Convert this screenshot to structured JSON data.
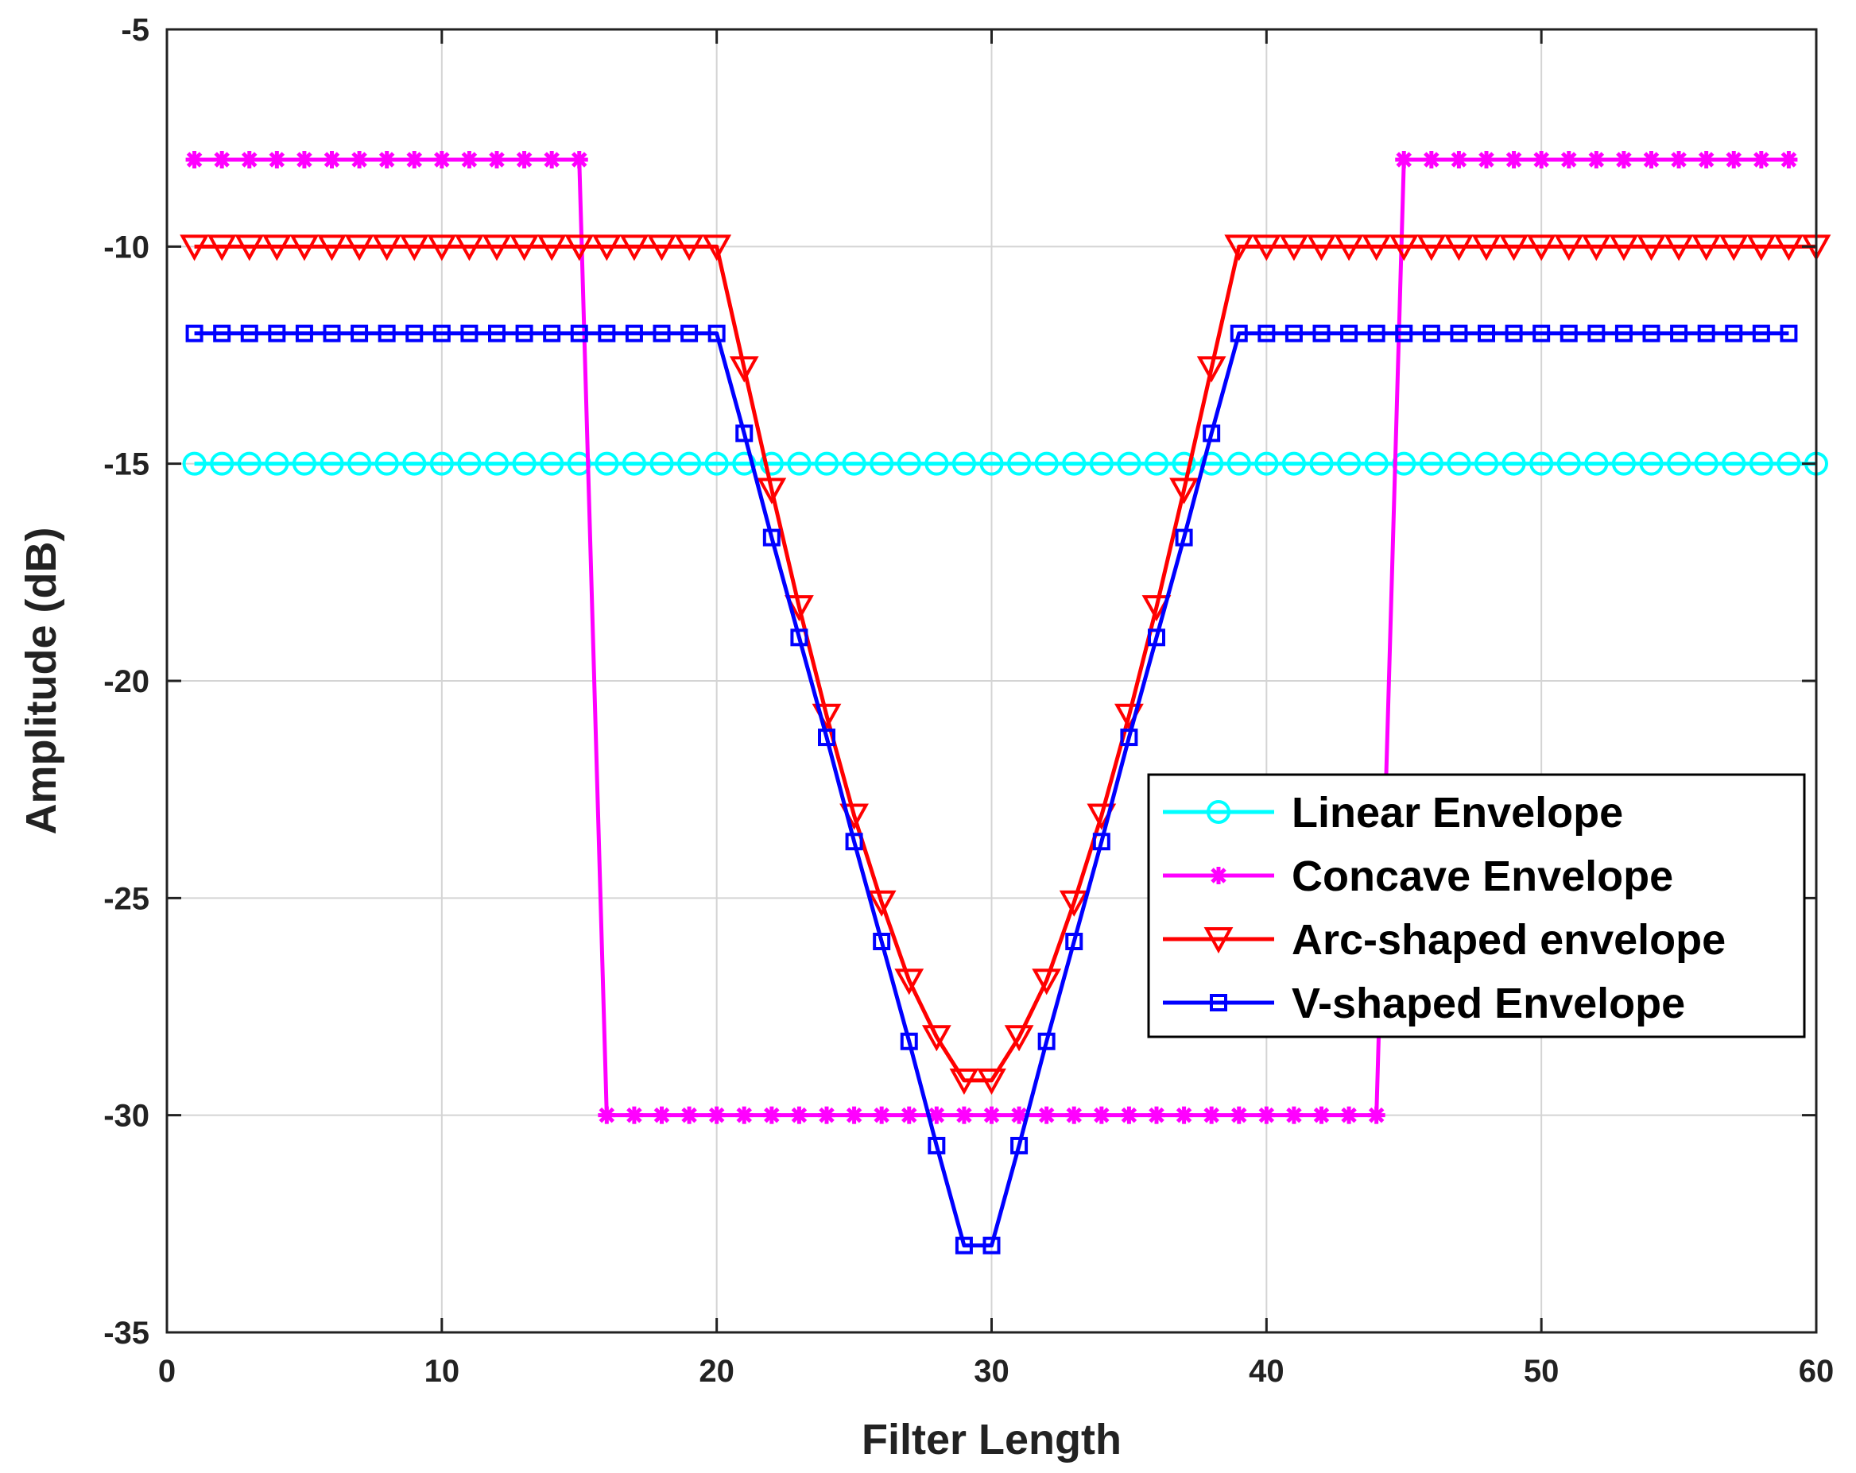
{
  "chart_data": {
    "type": "line",
    "title": "",
    "xlabel": "Filter Length",
    "ylabel": "Amplitude  (dB)",
    "xlim": [
      0,
      60
    ],
    "ylim": [
      -35,
      -5
    ],
    "xticks": [
      0,
      10,
      20,
      30,
      40,
      50,
      60
    ],
    "yticks": [
      -35,
      -30,
      -25,
      -20,
      -15,
      -10,
      -5
    ],
    "xtick_labels": [
      "0",
      "10",
      "20",
      "30",
      "40",
      "50",
      "60"
    ],
    "ytick_labels": [
      "-35",
      "-30",
      "-25",
      "-20",
      "-15",
      "-10",
      "-5"
    ],
    "grid": true,
    "legend_position": "right",
    "series": [
      {
        "name": "Linear Envelope",
        "color": "#00FFFF",
        "marker": "circle",
        "x": [
          1,
          2,
          3,
          4,
          5,
          6,
          7,
          8,
          9,
          10,
          11,
          12,
          13,
          14,
          15,
          16,
          17,
          18,
          19,
          20,
          21,
          22,
          23,
          24,
          25,
          26,
          27,
          28,
          29,
          30,
          31,
          32,
          33,
          34,
          35,
          36,
          37,
          38,
          39,
          40,
          41,
          42,
          43,
          44,
          45,
          46,
          47,
          48,
          49,
          50,
          51,
          52,
          53,
          54,
          55,
          56,
          57,
          58,
          59,
          60
        ],
        "y": [
          -15,
          -15,
          -15,
          -15,
          -15,
          -15,
          -15,
          -15,
          -15,
          -15,
          -15,
          -15,
          -15,
          -15,
          -15,
          -15,
          -15,
          -15,
          -15,
          -15,
          -15,
          -15,
          -15,
          -15,
          -15,
          -15,
          -15,
          -15,
          -15,
          -15,
          -15,
          -15,
          -15,
          -15,
          -15,
          -15,
          -15,
          -15,
          -15,
          -15,
          -15,
          -15,
          -15,
          -15,
          -15,
          -15,
          -15,
          -15,
          -15,
          -15,
          -15,
          -15,
          -15,
          -15,
          -15,
          -15,
          -15,
          -15,
          -15,
          -15
        ]
      },
      {
        "name": "Concave Envelope",
        "color": "#FF00FF",
        "marker": "asterisk",
        "x": [
          1,
          2,
          3,
          4,
          5,
          6,
          7,
          8,
          9,
          10,
          11,
          12,
          13,
          14,
          15,
          16,
          17,
          18,
          19,
          20,
          21,
          22,
          23,
          24,
          25,
          26,
          27,
          28,
          29,
          30,
          31,
          32,
          33,
          34,
          35,
          36,
          37,
          38,
          39,
          40,
          41,
          42,
          43,
          44,
          45,
          46,
          47,
          48,
          49,
          50,
          51,
          52,
          53,
          54,
          55,
          56,
          57,
          58,
          59
        ],
        "y": [
          -8,
          -8,
          -8,
          -8,
          -8,
          -8,
          -8,
          -8,
          -8,
          -8,
          -8,
          -8,
          -8,
          -8,
          -8,
          -30,
          -30,
          -30,
          -30,
          -30,
          -30,
          -30,
          -30,
          -30,
          -30,
          -30,
          -30,
          -30,
          -30,
          -30,
          -30,
          -30,
          -30,
          -30,
          -30,
          -30,
          -30,
          -30,
          -30,
          -30,
          -30,
          -30,
          -30,
          -30,
          -8,
          -8,
          -8,
          -8,
          -8,
          -8,
          -8,
          -8,
          -8,
          -8,
          -8,
          -8,
          -8,
          -8,
          -8
        ]
      },
      {
        "name": "Arc-shaped envelope",
        "color": "#FF0000",
        "marker": "triangle-down",
        "x": [
          1,
          2,
          3,
          4,
          5,
          6,
          7,
          8,
          9,
          10,
          11,
          12,
          13,
          14,
          15,
          16,
          17,
          18,
          19,
          20,
          21,
          22,
          23,
          24,
          25,
          26,
          27,
          28,
          29,
          30,
          31,
          32,
          33,
          34,
          35,
          36,
          37,
          38,
          39,
          40,
          41,
          42,
          43,
          44,
          45,
          46,
          47,
          48,
          49,
          50,
          51,
          52,
          53,
          54,
          55,
          56,
          57,
          58,
          59,
          60
        ],
        "y": [
          -10,
          -10,
          -10,
          -10,
          -10,
          -10,
          -10,
          -10,
          -10,
          -10,
          -10,
          -10,
          -10,
          -10,
          -10,
          -10,
          -10,
          -10,
          -10,
          -10,
          -12.8,
          -15.6,
          -18.3,
          -20.8,
          -23.1,
          -25.1,
          -26.9,
          -28.2,
          -29.2,
          -29.2,
          -28.2,
          -26.9,
          -25.1,
          -23.1,
          -20.8,
          -18.3,
          -15.6,
          -12.8,
          -10,
          -10,
          -10,
          -10,
          -10,
          -10,
          -10,
          -10,
          -10,
          -10,
          -10,
          -10,
          -10,
          -10,
          -10,
          -10,
          -10,
          -10,
          -10,
          -10,
          -10,
          -10
        ]
      },
      {
        "name": "V-shaped Envelope",
        "color": "#0000FF",
        "marker": "square",
        "x": [
          1,
          2,
          3,
          4,
          5,
          6,
          7,
          8,
          9,
          10,
          11,
          12,
          13,
          14,
          15,
          16,
          17,
          18,
          19,
          20,
          21,
          22,
          23,
          24,
          25,
          26,
          27,
          28,
          29,
          30,
          31,
          32,
          33,
          34,
          35,
          36,
          37,
          38,
          39,
          40,
          41,
          42,
          43,
          44,
          45,
          46,
          47,
          48,
          49,
          50,
          51,
          52,
          53,
          54,
          55,
          56,
          57,
          58,
          59
        ],
        "y": [
          -12,
          -12,
          -12,
          -12,
          -12,
          -12,
          -12,
          -12,
          -12,
          -12,
          -12,
          -12,
          -12,
          -12,
          -12,
          -12,
          -12,
          -12,
          -12,
          -12,
          -14.3,
          -16.7,
          -19,
          -21.3,
          -23.7,
          -26,
          -28.3,
          -30.7,
          -33,
          -33,
          -30.7,
          -28.3,
          -26,
          -23.7,
          -21.3,
          -19,
          -16.7,
          -14.3,
          -12,
          -12,
          -12,
          -12,
          -12,
          -12,
          -12,
          -12,
          -12,
          -12,
          -12,
          -12,
          -12,
          -12,
          -12,
          -12,
          -12,
          -12,
          -12,
          -12,
          -12
        ]
      }
    ]
  }
}
